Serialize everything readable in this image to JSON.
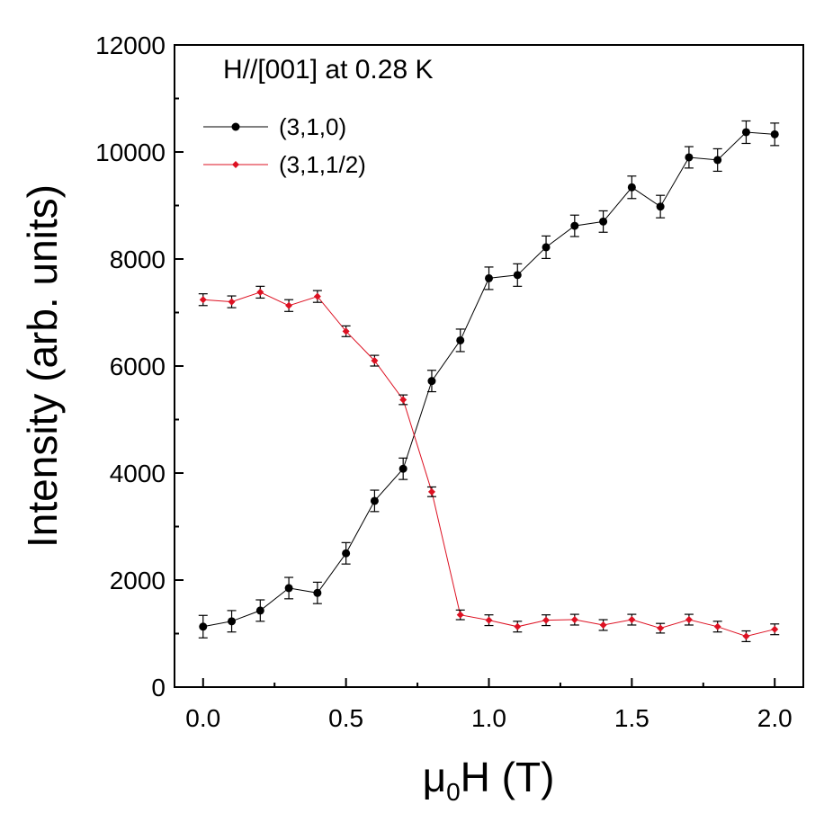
{
  "chart_data": {
    "type": "line",
    "annotation": "H//[001] at 0.28 K",
    "ylabel": "Intensity (arb. units)",
    "xlabel_main": "μ",
    "xlabel_sub": "0",
    "xlabel_rest": "H (T)",
    "xlim": [
      -0.1,
      2.1
    ],
    "ylim": [
      0,
      12000
    ],
    "xticks": [
      0.0,
      0.5,
      1.0,
      1.5,
      2.0
    ],
    "xtick_labels": [
      "0.0",
      "0.5",
      "1.0",
      "1.5",
      "2.0"
    ],
    "yticks": [
      0,
      2000,
      4000,
      6000,
      8000,
      10000,
      12000
    ],
    "ytick_labels": [
      "0",
      "2000",
      "4000",
      "6000",
      "8000",
      "10000",
      "12000"
    ],
    "legend_position": "top-left",
    "grid": false,
    "series": [
      {
        "name": "(3,1,0)",
        "color": "#000000",
        "marker": "circle",
        "x": [
          0.0,
          0.1,
          0.2,
          0.3,
          0.4,
          0.5,
          0.6,
          0.7,
          0.8,
          0.9,
          1.0,
          1.1,
          1.2,
          1.3,
          1.4,
          1.5,
          1.6,
          1.7,
          1.8,
          1.9,
          2.0
        ],
        "y": [
          1130,
          1230,
          1430,
          1850,
          1760,
          2500,
          3480,
          4080,
          5720,
          6480,
          7640,
          7700,
          8220,
          8620,
          8700,
          9340,
          8980,
          9900,
          9850,
          10370,
          10330
        ],
        "err": [
          210,
          200,
          200,
          200,
          200,
          200,
          200,
          200,
          200,
          210,
          210,
          210,
          210,
          200,
          200,
          210,
          210,
          200,
          210,
          210,
          210
        ]
      },
      {
        "name": "(3,1,1/2)",
        "color": "#dd1122",
        "marker": "diamond",
        "x": [
          0.0,
          0.1,
          0.2,
          0.3,
          0.4,
          0.5,
          0.6,
          0.7,
          0.8,
          0.9,
          1.0,
          1.1,
          1.2,
          1.3,
          1.4,
          1.5,
          1.6,
          1.7,
          1.8,
          1.9,
          2.0
        ],
        "y": [
          7240,
          7200,
          7380,
          7130,
          7300,
          6650,
          6100,
          5370,
          3650,
          1350,
          1250,
          1130,
          1250,
          1260,
          1160,
          1260,
          1100,
          1260,
          1130,
          950,
          1080
        ],
        "err": [
          110,
          110,
          110,
          110,
          110,
          100,
          100,
          90,
          90,
          90,
          100,
          100,
          100,
          100,
          100,
          100,
          90,
          100,
          100,
          100,
          100
        ]
      }
    ]
  }
}
